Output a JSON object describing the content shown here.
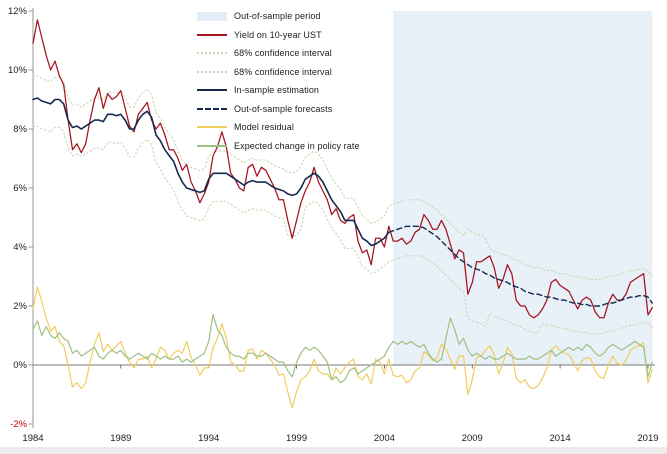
{
  "meta": {
    "background": "#ffffff",
    "axis_line_color": "#8c8c8c",
    "zero_line_color": "#4d4d4d",
    "tick_label_color": "#1c1c1c",
    "negative_label_color": "#c00000",
    "shading_color": "#e8f0f8"
  },
  "legend": {
    "items": [
      {
        "label": "Out-of-sample period",
        "swatch": "area",
        "color": "#e3edf7"
      },
      {
        "label": "Yield on 10-year UST",
        "swatch": "line",
        "color": "#a5121f"
      },
      {
        "label": "68% confidence interval",
        "swatch": "dotted",
        "color": "#c9d8b2"
      },
      {
        "label": "68% confidence interval",
        "swatch": "dotted",
        "color": "#c9d8b2"
      },
      {
        "label": "In-sample estimation",
        "swatch": "line",
        "color": "#132a4e"
      },
      {
        "label": "Out-of-sample forecasts",
        "swatch": "dashed",
        "color": "#132a4e"
      },
      {
        "label": "Model residual",
        "swatch": "line",
        "color": "#f0cd5f"
      },
      {
        "label": "Expected change in policy rate",
        "swatch": "line",
        "color": "#9dc182"
      }
    ]
  },
  "chart_data": {
    "type": "line",
    "title": "",
    "xlabel": "",
    "ylabel": "",
    "xlim": [
      1984,
      2019.4
    ],
    "ylim": [
      -2.4,
      12.1
    ],
    "grid": false,
    "legend_position": "top-left-overlay",
    "x_step": 0.25,
    "x_ticks": [
      {
        "v": 1984,
        "label": "1984"
      },
      {
        "v": 1989,
        "label": "1989"
      },
      {
        "v": 1994,
        "label": "1994"
      },
      {
        "v": 1999,
        "label": "1999"
      },
      {
        "v": 2004,
        "label": "2004"
      },
      {
        "v": 2009,
        "label": "2009"
      },
      {
        "v": 2014,
        "label": "2014"
      },
      {
        "v": 2019,
        "label": "2019"
      }
    ],
    "y_ticks": [
      {
        "v": 12,
        "label": "12%"
      },
      {
        "v": 10,
        "label": "10%"
      },
      {
        "v": 8,
        "label": "8%"
      },
      {
        "v": 6,
        "label": "6%"
      },
      {
        "v": 4,
        "label": "4%"
      },
      {
        "v": 2,
        "label": "2%"
      },
      {
        "v": 0,
        "label": "0%"
      },
      {
        "v": -2,
        "label": "-2%",
        "color": "#c00000"
      }
    ],
    "out_of_sample_region": {
      "start": 2004.5,
      "end": 2019.25,
      "y_from": 0,
      "y_to": 12
    },
    "series": [
      {
        "name": "ci_upper",
        "legend_label": "68% confidence interval",
        "color": "#c9d8b2",
        "style": "dotted",
        "width": 1.1,
        "x_start": 1984,
        "values": [
          9.75,
          9.8,
          9.7,
          9.65,
          9.6,
          9.75,
          9.75,
          9.6,
          9.05,
          8.8,
          8.85,
          8.75,
          8.85,
          8.95,
          9.05,
          9.05,
          9.0,
          9.25,
          9.25,
          9.2,
          9.25,
          9.05,
          8.75,
          8.75,
          9.05,
          9.25,
          9.35,
          9.15,
          8.55,
          8.35,
          8.05,
          7.85,
          7.65,
          7.25,
          6.95,
          6.75,
          6.7,
          6.65,
          6.6,
          6.65,
          7.05,
          7.25,
          7.25,
          7.25,
          7.25,
          7.15,
          7.05,
          6.95,
          6.85,
          6.95,
          7.0,
          6.95,
          6.95,
          6.95,
          6.85,
          6.75,
          6.7,
          6.65,
          6.55,
          6.5,
          6.55,
          6.75,
          7.05,
          7.15,
          7.25,
          7.15,
          6.95,
          6.65,
          6.35,
          6.15,
          5.95,
          5.65,
          5.65,
          5.65,
          5.35,
          5.05,
          4.95,
          4.8,
          4.85,
          4.95,
          5.05,
          5.4,
          5.45,
          5.5,
          5.55,
          5.6,
          5.6,
          5.6,
          5.6,
          5.55,
          5.45,
          5.35,
          5.25,
          5.1,
          4.95,
          4.8,
          4.65,
          4.5,
          4.4,
          4.6,
          4.5,
          4.45,
          4.4,
          4.3,
          3.95,
          3.85,
          3.8,
          3.75,
          3.7,
          3.6,
          3.55,
          3.5,
          3.4,
          3.35,
          3.3,
          3.3,
          3.25,
          3.2,
          3.2,
          3.15,
          3.1,
          3.1,
          3.05,
          3.0,
          3.0,
          2.95,
          2.95,
          2.9,
          2.9,
          2.9,
          2.95,
          3.0,
          3.0,
          3.05,
          3.1,
          3.15,
          3.2,
          3.2,
          3.25,
          3.25,
          3.2,
          3.0
        ]
      },
      {
        "name": "ci_lower",
        "legend_label": "68% confidence interval",
        "color": "#c9d8b2",
        "style": "dotted",
        "width": 1.1,
        "x_start": 1984,
        "values": [
          8.05,
          8.1,
          8.0,
          7.95,
          7.9,
          8.05,
          8.05,
          7.9,
          7.35,
          7.1,
          7.15,
          7.05,
          7.15,
          7.25,
          7.35,
          7.35,
          7.3,
          7.55,
          7.55,
          7.5,
          7.55,
          7.35,
          7.05,
          7.05,
          7.35,
          7.55,
          7.65,
          7.45,
          6.85,
          6.65,
          6.35,
          6.15,
          5.95,
          5.55,
          5.25,
          5.05,
          5.0,
          4.95,
          4.9,
          4.95,
          5.35,
          5.55,
          5.55,
          5.55,
          5.55,
          5.45,
          5.35,
          5.25,
          5.15,
          5.25,
          5.3,
          5.25,
          5.25,
          5.25,
          5.15,
          5.05,
          5.0,
          4.95,
          4.4,
          4.35,
          4.4,
          4.6,
          5.35,
          5.45,
          5.55,
          5.45,
          5.25,
          4.95,
          4.65,
          4.45,
          4.25,
          3.95,
          3.95,
          3.95,
          3.65,
          3.35,
          3.25,
          3.1,
          3.15,
          3.25,
          3.35,
          3.5,
          3.55,
          3.6,
          3.65,
          3.7,
          3.7,
          3.7,
          3.7,
          3.65,
          3.55,
          3.45,
          3.35,
          3.2,
          3.05,
          2.9,
          2.75,
          2.6,
          2.5,
          1.6,
          1.5,
          1.45,
          1.4,
          1.3,
          1.75,
          1.65,
          1.6,
          1.55,
          1.5,
          1.4,
          1.35,
          1.3,
          1.2,
          1.15,
          1.1,
          1.1,
          1.4,
          1.35,
          1.35,
          1.3,
          1.25,
          1.25,
          1.2,
          1.15,
          1.15,
          1.1,
          1.1,
          1.05,
          1.05,
          1.05,
          1.1,
          1.15,
          1.15,
          1.2,
          1.25,
          1.3,
          1.35,
          1.35,
          1.4,
          1.4,
          1.45,
          1.25
        ]
      },
      {
        "name": "model_residual",
        "legend_label": "Model residual",
        "color": "#f0cd5f",
        "style": "solid",
        "width": 1.2,
        "x_start": 1984,
        "values": [
          1.9,
          2.65,
          2.15,
          1.6,
          1.15,
          1.3,
          0.8,
          0.65,
          0.0,
          -0.75,
          -0.6,
          -0.8,
          -0.6,
          0.1,
          0.7,
          1.1,
          0.45,
          0.7,
          0.5,
          0.65,
          0.8,
          0.4,
          0.1,
          -0.1,
          0.2,
          0.2,
          0.3,
          -0.1,
          0.2,
          0.6,
          0.5,
          0.2,
          0.4,
          0.5,
          0.4,
          0.8,
          0.25,
          0.0,
          -0.35,
          -0.1,
          -0.1,
          0.6,
          0.9,
          1.4,
          0.9,
          0.1,
          0.0,
          -0.2,
          -0.2,
          0.5,
          0.55,
          0.2,
          0.5,
          0.4,
          0.2,
          0.0,
          -0.35,
          -0.3,
          -0.9,
          -1.45,
          -0.9,
          -0.5,
          -0.4,
          -0.2,
          0.2,
          -0.2,
          -0.3,
          -0.3,
          -0.5,
          -0.1,
          -0.3,
          -0.1,
          0.1,
          0.2,
          -0.4,
          -0.5,
          -0.3,
          -0.65,
          0.2,
          0.1,
          -0.3,
          0.2,
          -0.35,
          -0.4,
          -0.35,
          -0.6,
          -0.5,
          -0.2,
          -0.1,
          0.45,
          0.35,
          0.15,
          0.25,
          0.7,
          0.55,
          0.2,
          -0.15,
          0.3,
          0.3,
          -1.0,
          -0.5,
          0.25,
          0.3,
          0.5,
          0.65,
          0.35,
          -0.3,
          0.05,
          0.6,
          0.4,
          -0.45,
          -0.6,
          -0.5,
          -0.75,
          -0.8,
          -0.7,
          -0.45,
          -0.1,
          0.5,
          0.65,
          0.5,
          0.4,
          0.35,
          0.1,
          -0.2,
          0.15,
          0.25,
          0.2,
          -0.2,
          -0.4,
          -0.45,
          0.0,
          0.3,
          0.05,
          0.0,
          0.15,
          0.5,
          0.6,
          0.65,
          0.75,
          -0.6,
          -0.15
        ]
      },
      {
        "name": "expected_policy_rate_change",
        "legend_label": "Expected change in policy rate",
        "color": "#9dc182",
        "style": "solid",
        "width": 1.2,
        "x_start": 1984,
        "values": [
          1.2,
          1.5,
          1.0,
          1.3,
          1.0,
          0.9,
          1.1,
          0.9,
          0.8,
          0.4,
          0.5,
          0.3,
          0.4,
          0.5,
          0.6,
          0.3,
          0.2,
          0.4,
          0.5,
          0.4,
          0.5,
          0.3,
          0.2,
          0.3,
          0.4,
          0.3,
          0.2,
          0.4,
          0.3,
          0.2,
          0.3,
          0.2,
          0.2,
          0.3,
          0.1,
          0.2,
          0.1,
          0.2,
          0.3,
          0.4,
          0.8,
          1.7,
          1.2,
          1.0,
          0.6,
          0.4,
          0.3,
          0.3,
          0.2,
          0.4,
          0.4,
          0.3,
          0.3,
          0.4,
          0.3,
          0.2,
          0.1,
          0.1,
          -0.2,
          -0.4,
          0.1,
          0.4,
          0.6,
          0.5,
          0.6,
          0.5,
          0.3,
          0.1,
          -0.5,
          -0.4,
          -0.6,
          -0.5,
          -0.2,
          -0.1,
          -0.3,
          -0.2,
          -0.1,
          0.0,
          0.1,
          0.2,
          0.3,
          0.6,
          0.8,
          0.7,
          0.8,
          0.7,
          0.8,
          0.7,
          0.6,
          0.7,
          0.4,
          0.2,
          0.1,
          0.2,
          0.9,
          1.6,
          1.2,
          0.7,
          0.9,
          0.5,
          0.3,
          0.4,
          0.3,
          0.2,
          0.3,
          0.2,
          0.2,
          0.3,
          0.4,
          0.3,
          0.2,
          0.2,
          0.2,
          0.3,
          0.2,
          0.2,
          0.3,
          0.4,
          0.5,
          0.3,
          0.4,
          0.5,
          0.6,
          0.5,
          0.6,
          0.5,
          0.7,
          0.6,
          0.4,
          0.3,
          0.4,
          0.6,
          0.7,
          0.6,
          0.5,
          0.6,
          0.7,
          0.8,
          0.7,
          0.6,
          -0.4,
          0.1
        ]
      },
      {
        "name": "yield_10y_ust",
        "legend_label": "Yield on 10-year UST",
        "color": "#a5121f",
        "style": "solid",
        "width": 1.25,
        "x_start": 1984,
        "values": [
          10.9,
          11.7,
          11.1,
          10.5,
          10.0,
          10.3,
          9.8,
          9.5,
          8.3,
          7.3,
          7.5,
          7.2,
          7.5,
          8.3,
          9.0,
          9.4,
          8.7,
          9.2,
          9.0,
          9.1,
          9.3,
          8.7,
          8.1,
          7.9,
          8.5,
          8.7,
          8.9,
          8.3,
          8.0,
          8.2,
          7.8,
          7.3,
          7.3,
          7.0,
          6.6,
          6.8,
          6.2,
          5.9,
          5.5,
          5.8,
          6.2,
          7.1,
          7.4,
          7.9,
          7.4,
          6.5,
          6.3,
          6.0,
          5.9,
          6.7,
          6.8,
          6.4,
          6.7,
          6.6,
          6.3,
          6.0,
          5.6,
          5.6,
          4.9,
          4.3,
          4.9,
          5.5,
          5.9,
          6.2,
          6.7,
          6.2,
          5.9,
          5.6,
          5.1,
          5.3,
          4.9,
          4.8,
          5.0,
          5.1,
          4.2,
          3.8,
          3.9,
          3.4,
          4.3,
          4.3,
          4.0,
          4.7,
          4.2,
          4.2,
          4.3,
          4.1,
          4.2,
          4.5,
          4.6,
          5.1,
          4.9,
          4.6,
          4.6,
          4.9,
          4.6,
          4.1,
          3.6,
          3.9,
          3.8,
          2.4,
          2.8,
          3.5,
          3.5,
          3.6,
          3.7,
          3.3,
          2.6,
          2.9,
          3.4,
          3.1,
          2.2,
          2.0,
          2.0,
          1.7,
          1.6,
          1.7,
          1.9,
          2.2,
          2.8,
          2.9,
          2.7,
          2.6,
          2.5,
          2.2,
          1.9,
          2.2,
          2.3,
          2.2,
          1.8,
          1.6,
          1.6,
          2.1,
          2.4,
          2.2,
          2.2,
          2.4,
          2.8,
          2.9,
          3.0,
          3.1,
          1.7,
          1.95
        ]
      },
      {
        "name": "in_sample_estimation",
        "legend_label": "In-sample estimation",
        "color": "#132a4e",
        "style": "solid",
        "width": 1.6,
        "x_start": 1984,
        "values": [
          9.0,
          9.05,
          8.95,
          8.9,
          8.85,
          9.0,
          9.0,
          8.85,
          8.3,
          8.05,
          8.1,
          8.0,
          8.1,
          8.2,
          8.3,
          8.3,
          8.25,
          8.5,
          8.5,
          8.45,
          8.5,
          8.3,
          8.0,
          8.0,
          8.3,
          8.5,
          8.6,
          8.4,
          7.8,
          7.6,
          7.3,
          7.1,
          6.9,
          6.5,
          6.2,
          6.0,
          5.95,
          5.9,
          5.85,
          5.9,
          6.3,
          6.5,
          6.5,
          6.5,
          6.5,
          6.4,
          6.3,
          6.2,
          6.1,
          6.2,
          6.25,
          6.2,
          6.2,
          6.2,
          6.1,
          6.0,
          5.95,
          5.9,
          5.8,
          5.75,
          5.8,
          6.0,
          6.3,
          6.4,
          6.5,
          6.4,
          6.2,
          5.9,
          5.6,
          5.4,
          5.2,
          4.9,
          4.9,
          4.9,
          4.6,
          4.3,
          4.2,
          4.05,
          4.1,
          4.2,
          4.3,
          4.5
        ]
      },
      {
        "name": "out_of_sample_forecasts",
        "legend_label": "Out-of-sample forecasts",
        "color": "#132a4e",
        "style": "dashed",
        "width": 1.4,
        "x_start": 2004.25,
        "values": [
          4.5,
          4.55,
          4.6,
          4.65,
          4.7,
          4.7,
          4.7,
          4.7,
          4.65,
          4.55,
          4.45,
          4.35,
          4.2,
          4.05,
          3.9,
          3.75,
          3.6,
          3.5,
          3.4,
          3.3,
          3.25,
          3.2,
          3.1,
          3.05,
          2.95,
          2.9,
          2.85,
          2.8,
          2.7,
          2.65,
          2.6,
          2.5,
          2.45,
          2.4,
          2.4,
          2.35,
          2.3,
          2.3,
          2.25,
          2.2,
          2.2,
          2.15,
          2.1,
          2.1,
          2.05,
          2.05,
          2.0,
          2.0,
          2.0,
          2.05,
          2.1,
          2.1,
          2.15,
          2.2,
          2.25,
          2.3,
          2.3,
          2.35,
          2.35,
          2.3,
          2.1
        ]
      }
    ]
  }
}
